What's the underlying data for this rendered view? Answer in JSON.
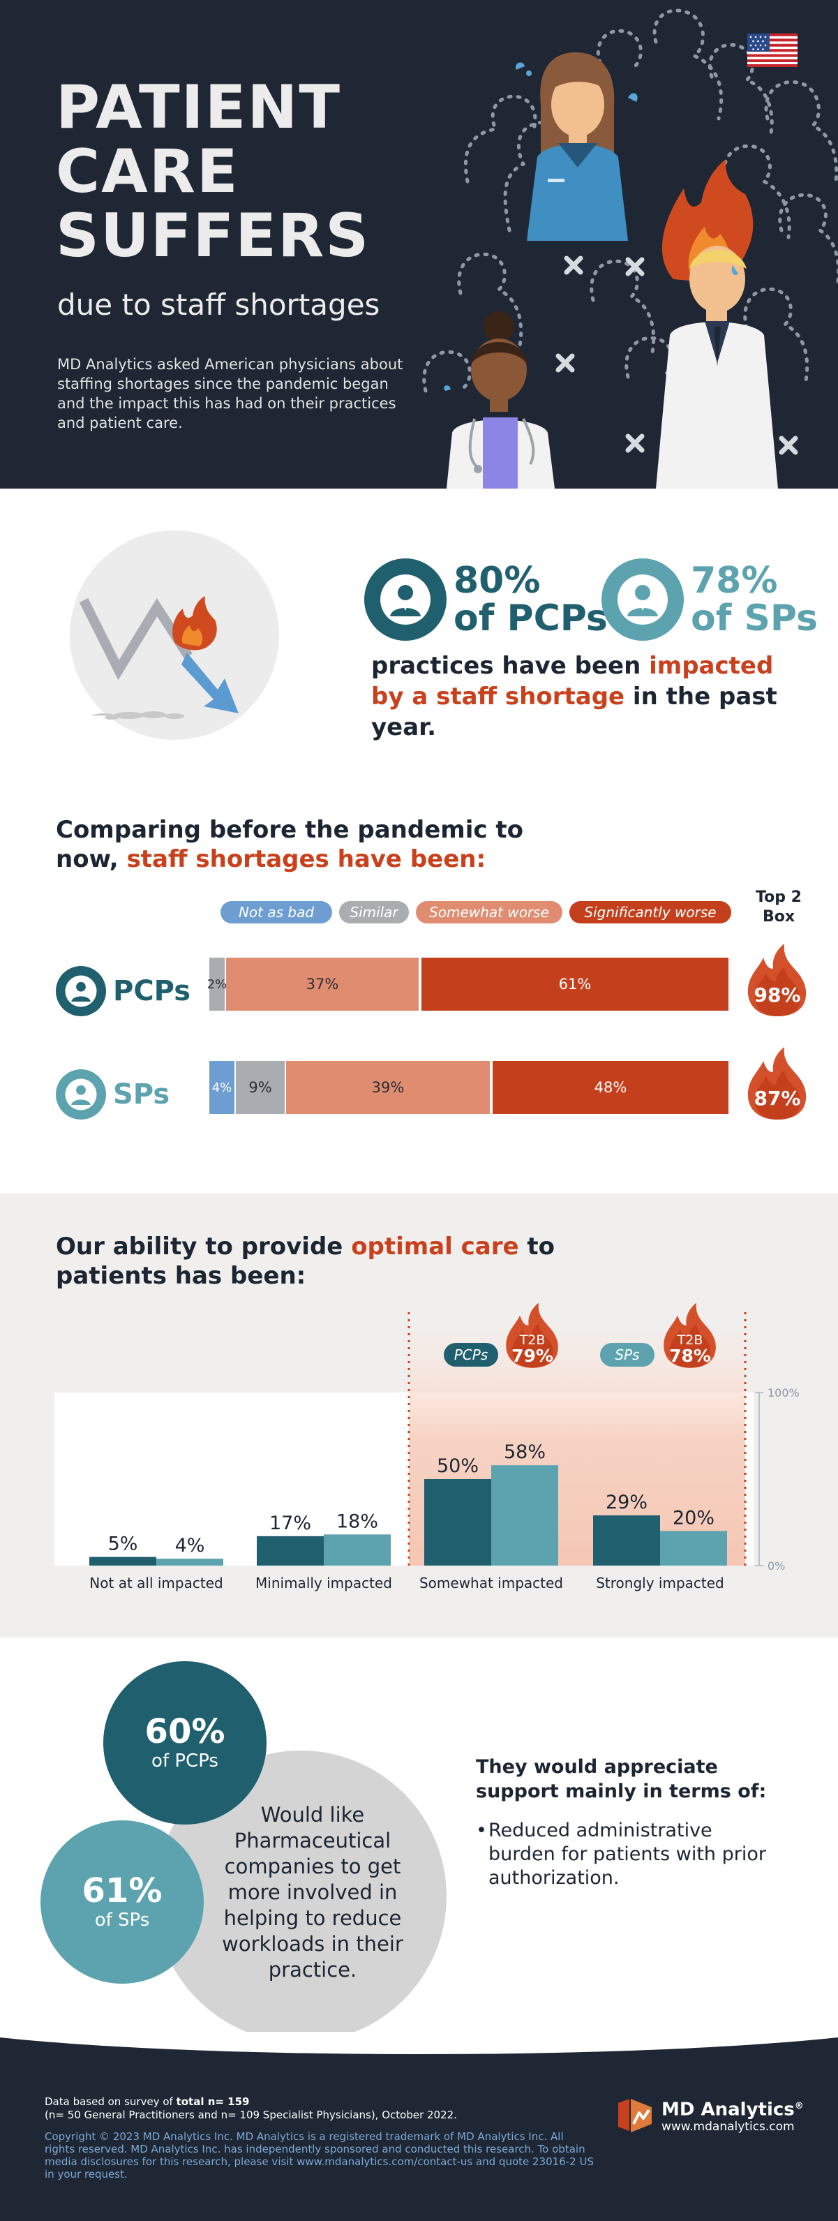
{
  "hero": {
    "title": "PATIENT\nCARE\nSUFFERS",
    "subtitle": "due to staff shortages",
    "description": "MD Analytics asked American physicians about staffing shortages since the pandemic began and the impact this has had on their practices and patient care.",
    "icons": [
      "us-flag-icon",
      "female-doctor-icon",
      "male-doctor-on-fire-icon",
      "nurse-icon",
      "dotted-silhouette-icon",
      "x-mark-icon"
    ]
  },
  "impact": {
    "pcp_pct": "80%",
    "pcp_label": "of PCPs",
    "sp_pct": "78%",
    "sp_label": "of SPs",
    "caption_pre": "practices have been ",
    "caption_hl": "impacted by a staff shortage",
    "caption_post": " in the past year."
  },
  "comparison": {
    "title_pre": "Comparing before the pandemic to now, ",
    "title_hl": "staff shortages have been:",
    "legend": [
      "Not as bad",
      "Similar",
      "Somewhat worse",
      "Significantly worse"
    ],
    "top2_label": "Top 2 Box",
    "rows": [
      {
        "label": "PCPs",
        "segments": [
          "",
          "2%",
          "37%",
          "61%"
        ],
        "top2": "98%"
      },
      {
        "label": "SPs",
        "segments": [
          "4%",
          "9%",
          "39%",
          "48%"
        ],
        "top2": "87%"
      }
    ]
  },
  "chart_data": {
    "type": "bar",
    "title": "Our ability to provide optimal care to patients has been:",
    "categories": [
      "Not at all impacted",
      "Minimally impacted",
      "Somewhat impacted",
      "Strongly impacted"
    ],
    "series": [
      {
        "name": "PCPs",
        "values": [
          5,
          17,
          50,
          29
        ]
      },
      {
        "name": "SPs",
        "values": [
          4,
          18,
          58,
          20
        ]
      }
    ],
    "value_labels": [
      [
        "5%",
        "17%",
        "50%",
        "29%"
      ],
      [
        "4%",
        "18%",
        "58%",
        "20%"
      ]
    ],
    "ylim": [
      0,
      100
    ],
    "y_ticks": [
      "100%",
      "0%"
    ],
    "colors": {
      "PCPs": "#1f5f6e",
      "SPs": "#5da3af"
    },
    "t2b": {
      "label": "T2B",
      "PCPs": "79%",
      "SPs": "78%"
    }
  },
  "care": {
    "title_pre": "Our ability to provide ",
    "title_hl": "optimal care",
    "title_post": " to patients has been:"
  },
  "support": {
    "pcp_pct": "60%",
    "pcp_label": "of PCPs",
    "sp_pct": "61%",
    "sp_label": "of SPs",
    "center_text": "Would like Pharmaceutical companies to get more involved in helping to reduce workloads in their practice.",
    "title": "They would appreciate support mainly in terms of:",
    "bullet": "Reduced administrative burden for patients with prior authorization."
  },
  "footer": {
    "survey_pre": "Data based on survey of ",
    "survey_bold": "total n= 159",
    "survey_detail": "(n= 50 General Practitioners and n= 109 Specialist Physicians), October 2022.",
    "copyright": "Copyright © 2023 MD Analytics Inc. MD Analytics is a registered trademark of MD Analytics Inc. All rights reserved. MD Analytics Inc. has independently sponsored and conducted this research. To obtain media disclosures for this research, please visit www.mdanalytics.com/contact-us and quote 23016-2 US in your request.",
    "brand": "MD Analytics",
    "brand_mark": "®",
    "url": "www.mdanalytics.com"
  },
  "colors": {
    "navy": "#1e2733",
    "accent_red": "#c9401c",
    "teal_dark": "#1f5f6e",
    "teal_light": "#5da3af",
    "legend_blue": "#6e9ed1",
    "legend_grey": "#a9acb1",
    "legend_salmon": "#df8c70",
    "legend_red": "#c4401c"
  }
}
